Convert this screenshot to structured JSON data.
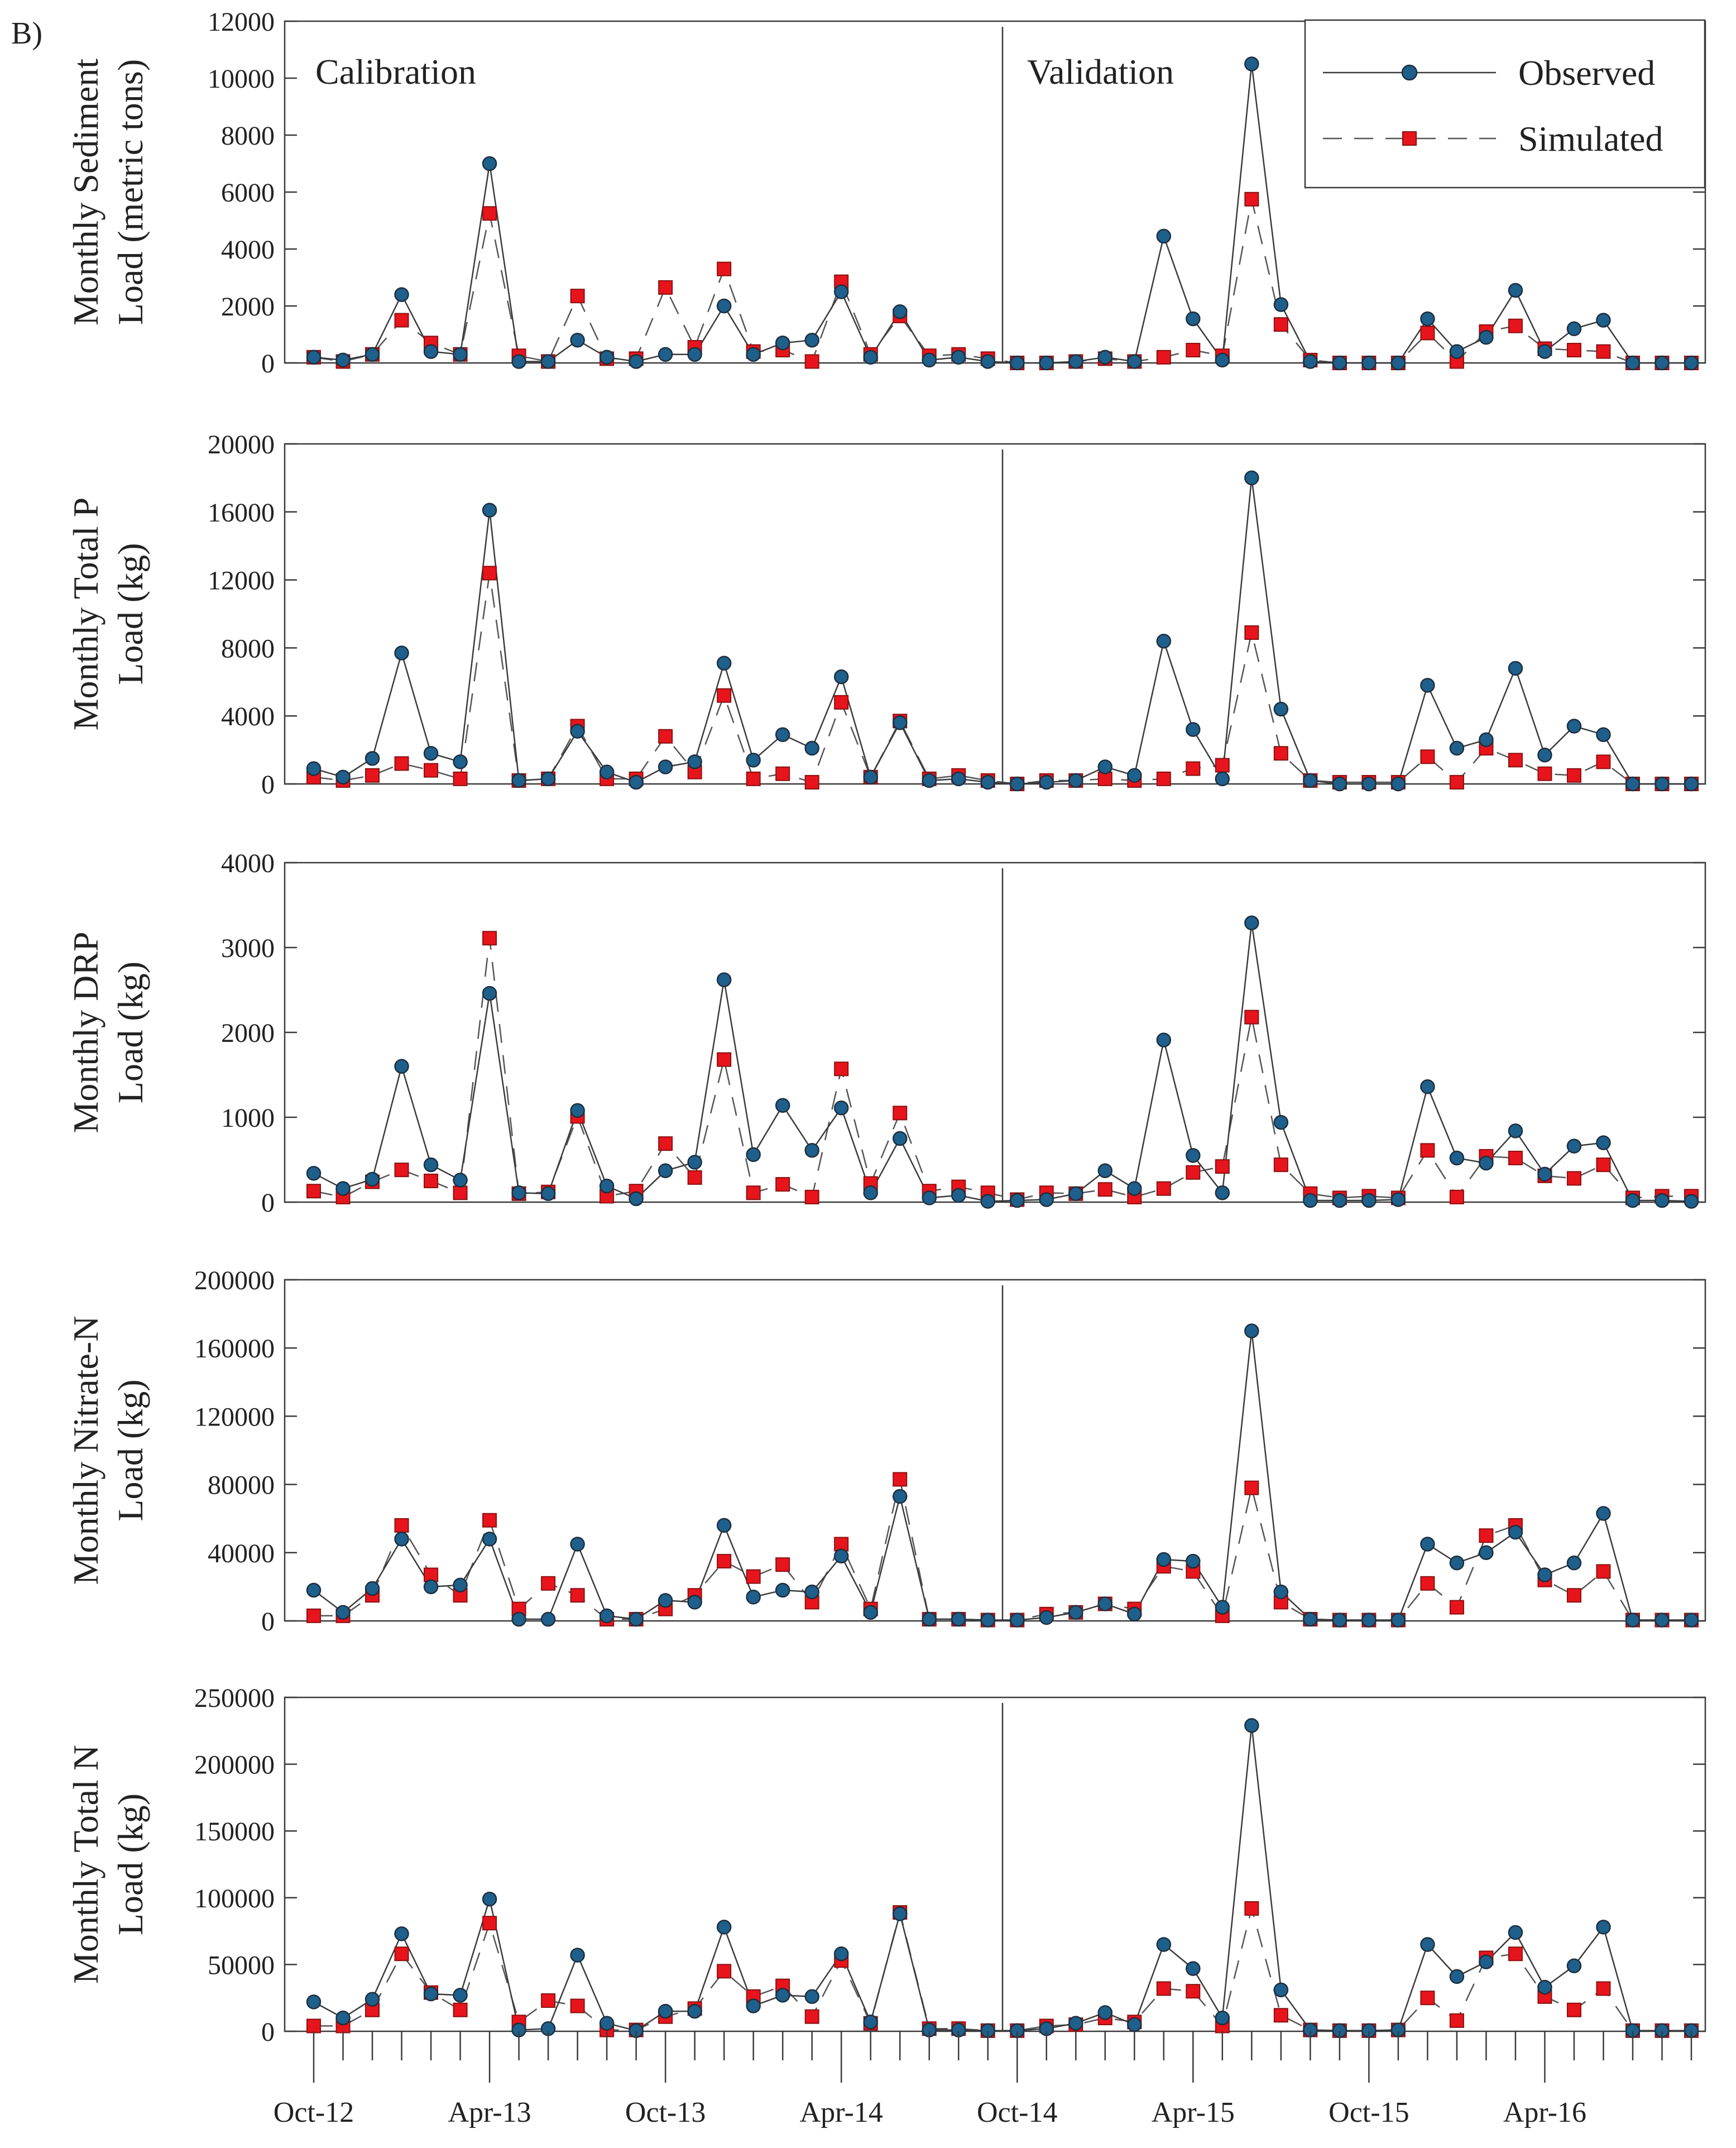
{
  "figure": {
    "panel_letter": "B)",
    "calibration_label": "Calibration",
    "validation_label": "Validation",
    "legend": {
      "observed": "Observed",
      "simulated": "Simulated"
    },
    "colors": {
      "observed": "#1f5f8b",
      "simulated": "#e8141c",
      "axes": "#3a3a3a"
    },
    "x_tick_labels": [
      "Oct-12",
      "Apr-13",
      "Oct-13",
      "Apr-14",
      "Oct-14",
      "Apr-15",
      "Oct-15",
      "Apr-16"
    ]
  },
  "chart_data": [
    {
      "type": "line",
      "title": "",
      "ylabel_lines": [
        "Monthly Sediment",
        "Load (metric tons)"
      ],
      "ylim": [
        0,
        12000
      ],
      "yticks": [
        0,
        2000,
        4000,
        6000,
        8000,
        10000,
        12000
      ],
      "series": [
        {
          "name": "Observed",
          "values": [
            200,
            100,
            300,
            2400,
            400,
            300,
            7000,
            50,
            50,
            800,
            200,
            50,
            300,
            300,
            2000,
            300,
            700,
            800,
            2500,
            200,
            1800,
            100,
            200,
            50,
            0,
            0,
            50,
            200,
            50,
            4450,
            1550,
            100,
            10500,
            2050,
            50,
            0,
            0,
            0,
            1550,
            400,
            900,
            2550,
            400,
            1200,
            1500,
            0,
            0,
            0
          ]
        },
        {
          "name": "Simulated",
          "values": [
            200,
            50,
            300,
            1500,
            700,
            300,
            5250,
            250,
            50,
            2350,
            150,
            150,
            2650,
            550,
            3300,
            400,
            450,
            50,
            2850,
            300,
            1650,
            250,
            300,
            150,
            0,
            0,
            50,
            150,
            50,
            200,
            450,
            250,
            5750,
            1350,
            100,
            0,
            0,
            0,
            1050,
            50,
            1100,
            1300,
            500,
            450,
            400,
            0,
            0,
            0
          ]
        }
      ]
    },
    {
      "type": "line",
      "title": "",
      "ylabel_lines": [
        "Monthly Total P",
        "Load (kg)"
      ],
      "ylim": [
        0,
        20000
      ],
      "yticks": [
        0,
        4000,
        8000,
        12000,
        16000,
        20000
      ],
      "series": [
        {
          "name": "Observed",
          "values": [
            900,
            400,
            1500,
            7700,
            1800,
            1300,
            16100,
            200,
            300,
            3100,
            700,
            100,
            1000,
            1300,
            7100,
            1400,
            2900,
            2100,
            6300,
            400,
            3600,
            200,
            300,
            100,
            0,
            100,
            200,
            1000,
            500,
            8400,
            3200,
            300,
            18000,
            4400,
            200,
            0,
            0,
            0,
            5800,
            2100,
            2600,
            6800,
            1700,
            3400,
            2900,
            0,
            0,
            0
          ]
        },
        {
          "name": "Simulated",
          "values": [
            400,
            200,
            500,
            1200,
            800,
            300,
            12400,
            200,
            300,
            3400,
            300,
            300,
            2800,
            700,
            5200,
            300,
            600,
            100,
            4800,
            400,
            3700,
            300,
            500,
            200,
            0,
            200,
            200,
            300,
            200,
            300,
            900,
            1100,
            8900,
            1800,
            200,
            100,
            100,
            100,
            1600,
            100,
            2100,
            1400,
            600,
            500,
            1300,
            0,
            0,
            0
          ]
        }
      ]
    },
    {
      "type": "line",
      "title": "",
      "ylabel_lines": [
        "Monthly DRP",
        "Load (kg)"
      ],
      "ylim": [
        0,
        4000
      ],
      "yticks": [
        0,
        1000,
        2000,
        3000,
        4000
      ],
      "series": [
        {
          "name": "Observed",
          "values": [
            340,
            160,
            270,
            1600,
            440,
            260,
            2460,
            110,
            100,
            1080,
            190,
            40,
            370,
            470,
            2620,
            560,
            1140,
            610,
            1110,
            110,
            750,
            50,
            80,
            10,
            20,
            30,
            100,
            370,
            160,
            1910,
            550,
            110,
            3290,
            940,
            20,
            20,
            20,
            30,
            1360,
            520,
            460,
            840,
            330,
            660,
            700,
            20,
            20,
            10
          ]
        },
        {
          "name": "Simulated",
          "values": [
            130,
            60,
            240,
            380,
            250,
            110,
            3110,
            100,
            120,
            1010,
            70,
            130,
            690,
            290,
            1680,
            110,
            210,
            60,
            1570,
            220,
            1050,
            130,
            180,
            110,
            30,
            110,
            100,
            150,
            60,
            160,
            350,
            420,
            2180,
            440,
            100,
            50,
            70,
            50,
            610,
            60,
            540,
            520,
            310,
            280,
            440,
            50,
            70,
            70
          ]
        }
      ]
    },
    {
      "type": "line",
      "title": "",
      "ylabel_lines": [
        "Monthly Nitrate-N",
        "Load (kg)"
      ],
      "ylim": [
        0,
        200000
      ],
      "yticks": [
        0,
        40000,
        80000,
        120000,
        160000,
        200000
      ],
      "series": [
        {
          "name": "Observed",
          "values": [
            18000,
            5000,
            19000,
            48000,
            20000,
            21000,
            48000,
            1000,
            1000,
            45000,
            3000,
            1000,
            12000,
            11000,
            56000,
            14000,
            18000,
            17000,
            38000,
            5000,
            73000,
            1000,
            1000,
            500,
            500,
            2000,
            5000,
            10000,
            4000,
            36000,
            35000,
            8000,
            170000,
            17000,
            1000,
            500,
            500,
            500,
            45000,
            34000,
            40000,
            52000,
            27000,
            34000,
            63000,
            500,
            500,
            500
          ]
        },
        {
          "name": "Simulated",
          "values": [
            3000,
            3000,
            15000,
            56000,
            27000,
            15000,
            59000,
            7000,
            22000,
            15000,
            1000,
            1000,
            7000,
            15000,
            35000,
            26000,
            33000,
            11000,
            45000,
            7000,
            83000,
            1000,
            1000,
            500,
            500,
            4000,
            5000,
            10000,
            7000,
            32000,
            29000,
            3000,
            78000,
            11000,
            1000,
            500,
            500,
            500,
            22000,
            8000,
            50000,
            56000,
            24000,
            15000,
            29000,
            500,
            500,
            500
          ]
        }
      ]
    },
    {
      "type": "line",
      "title": "",
      "ylabel_lines": [
        "Monthly Total N",
        "Load (kg)"
      ],
      "ylim": [
        0,
        250000
      ],
      "yticks": [
        0,
        50000,
        100000,
        150000,
        200000,
        250000
      ],
      "series": [
        {
          "name": "Observed",
          "values": [
            22000,
            10000,
            24000,
            73000,
            28000,
            27000,
            99000,
            1000,
            2000,
            57000,
            6000,
            500,
            15000,
            15000,
            78000,
            19000,
            27000,
            26000,
            58000,
            7000,
            88000,
            1000,
            1000,
            500,
            500,
            2000,
            6000,
            14000,
            5000,
            65000,
            47000,
            10000,
            229000,
            31000,
            1000,
            500,
            500,
            1000,
            65000,
            41000,
            52000,
            74000,
            33000,
            49000,
            78000,
            500,
            500,
            500
          ]
        },
        {
          "name": "Simulated",
          "values": [
            4000,
            4000,
            16000,
            58000,
            29000,
            16000,
            81000,
            7000,
            23000,
            19000,
            1000,
            1000,
            11000,
            17000,
            45000,
            26000,
            34000,
            11000,
            53000,
            6000,
            89000,
            2000,
            2000,
            500,
            500,
            4000,
            5000,
            10000,
            7000,
            32000,
            30000,
            4000,
            92000,
            12000,
            1000,
            500,
            500,
            1000,
            25000,
            8000,
            55000,
            58000,
            26000,
            16000,
            32000,
            500,
            500,
            500
          ]
        }
      ]
    }
  ]
}
